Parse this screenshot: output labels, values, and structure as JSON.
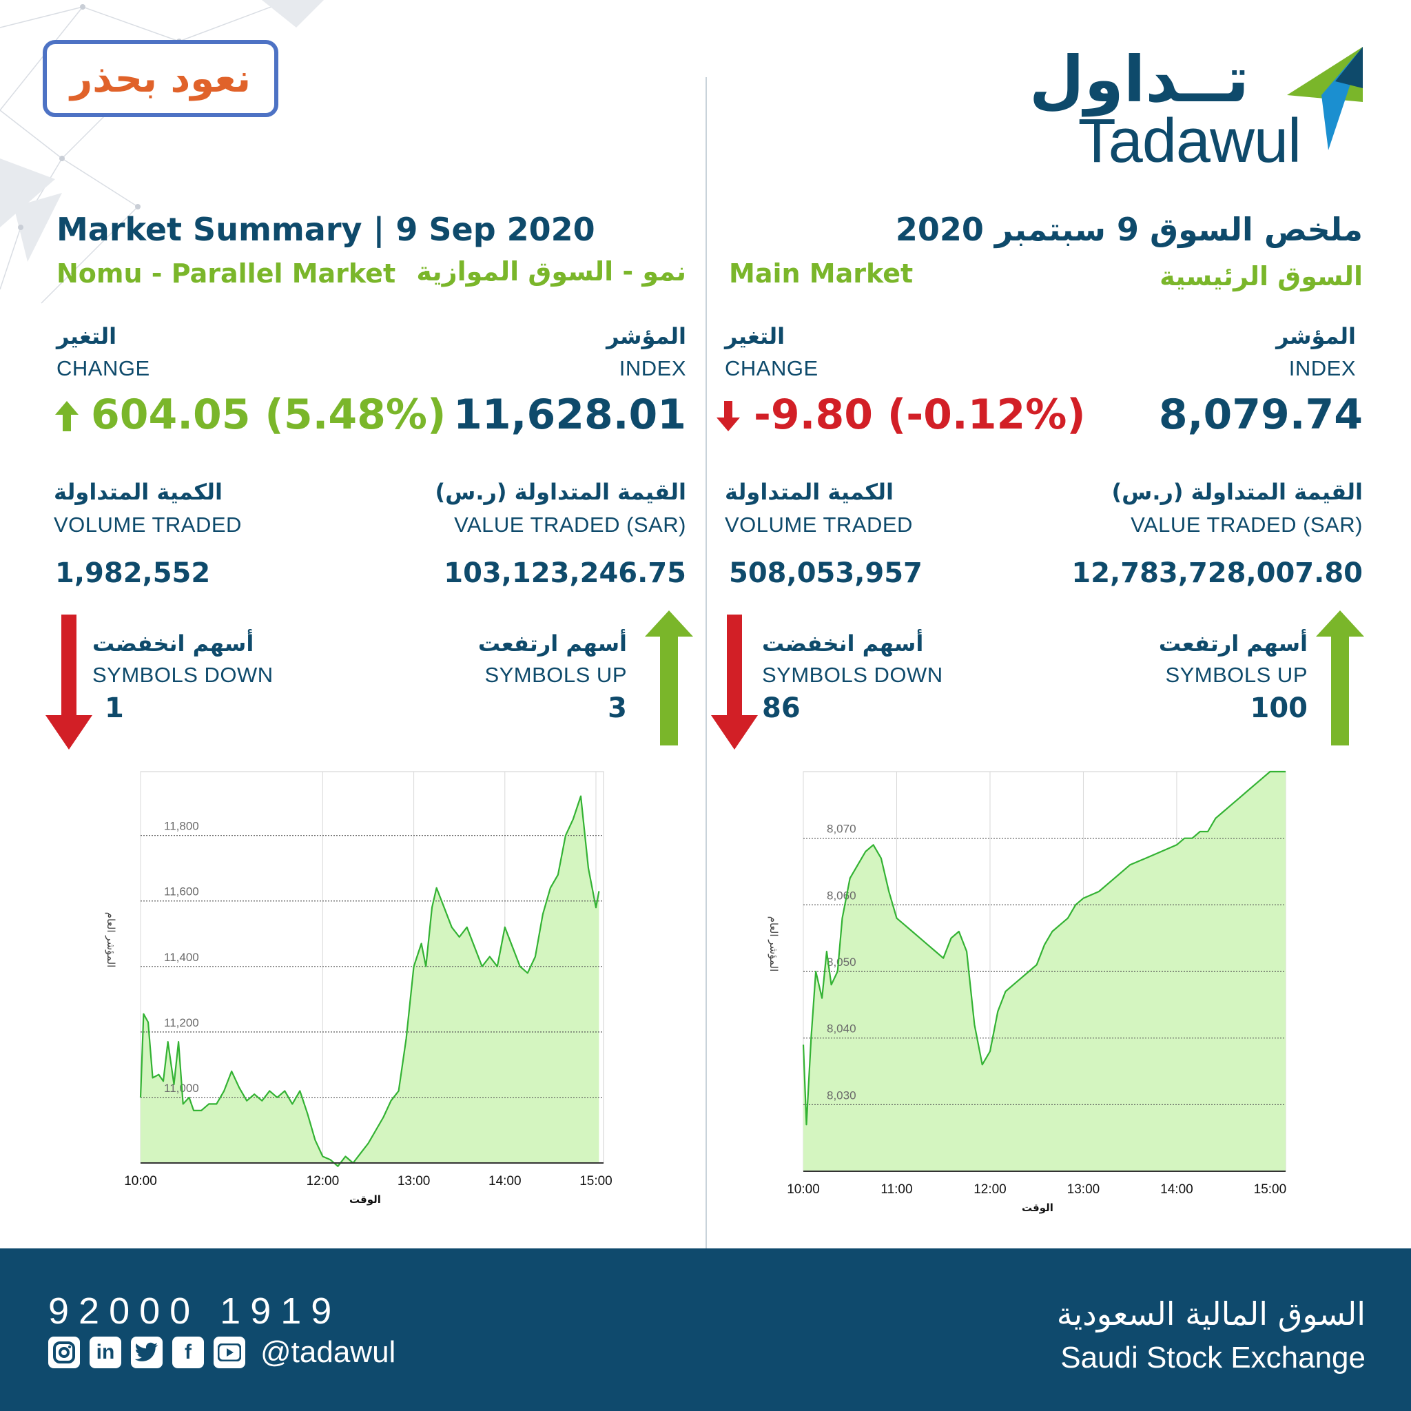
{
  "badge": {
    "text": "نعود بحذر"
  },
  "logo": {
    "arabic": "تــداول",
    "english": "Tadawul"
  },
  "left": {
    "title": "Market Summary | 9 Sep 2020",
    "market_en": "Nomu - Parallel Market",
    "market_ar": "نمو - السوق الموازية",
    "change": {
      "label_ar": "التغير",
      "label_en": "CHANGE",
      "value": "604.05 (5.48%)",
      "direction": "up"
    },
    "index": {
      "label_ar": "المؤشر",
      "label_en": "INDEX",
      "value": "11,628.01"
    },
    "volume": {
      "label_ar": "الكمية المتداولة",
      "label_en": "VOLUME TRADED",
      "value": "1,982,552"
    },
    "value_traded": {
      "label_ar": "القيمة المتداولة (ر.س)",
      "label_en": "VALUE TRADED (SAR)",
      "value": "103,123,246.75"
    },
    "symbols_down": {
      "label_ar": "أسهم انخفضت",
      "label_en": "SYMBOLS DOWN",
      "value": "1"
    },
    "symbols_up": {
      "label_ar": "أسهم ارتفعت",
      "label_en": "SYMBOLS UP",
      "value": "3"
    }
  },
  "right": {
    "title": "ملخص السوق  9 سبتمبر 2020",
    "market_en": "Main Market",
    "market_ar": "السوق الرئيسية",
    "change": {
      "label_ar": "التغير",
      "label_en": "CHANGE",
      "value": "-9.80 (-0.12%)",
      "direction": "down"
    },
    "index": {
      "label_ar": "المؤشر",
      "label_en": "INDEX",
      "value": "8,079.74"
    },
    "volume": {
      "label_ar": "الكمية المتداولة",
      "label_en": "VOLUME TRADED",
      "value": "508,053,957"
    },
    "value_traded": {
      "label_ar": "القيمة المتداولة (ر.س)",
      "label_en": "VALUE TRADED (SAR)",
      "value": "12,783,728,007.80"
    },
    "symbols_down": {
      "label_ar": "أسهم انخفضت",
      "label_en": "SYMBOLS DOWN",
      "value": "86"
    },
    "symbols_up": {
      "label_ar": "أسهم ارتفعت",
      "label_en": "SYMBOLS UP",
      "value": "100"
    }
  },
  "colors": {
    "navy": "#0e4a6b",
    "green": "#7ab62a",
    "red": "#d21f26",
    "chart_line": "#33b233",
    "chart_fill": "#d4f5c0"
  },
  "chart_data": [
    {
      "type": "area",
      "xlabel": "الوقت",
      "ylabel": "المؤشر العام",
      "x_ticks": [
        "10:00",
        "12:00",
        "13:00",
        "14:00",
        "15:00"
      ],
      "y_ticks": [
        "11,000",
        "11,200",
        "11,400",
        "11,600",
        "11,800"
      ],
      "ylim": [
        10800,
        11995
      ],
      "grid": true,
      "x": [
        "10:00",
        "10:02",
        "10:05",
        "10:08",
        "10:12",
        "10:15",
        "10:18",
        "10:22",
        "10:25",
        "10:28",
        "10:32",
        "10:35",
        "10:40",
        "10:45",
        "10:50",
        "10:55",
        "11:00",
        "11:05",
        "11:10",
        "11:15",
        "11:20",
        "11:25",
        "11:30",
        "11:35",
        "11:40",
        "11:45",
        "11:50",
        "11:55",
        "12:00",
        "12:05",
        "12:10",
        "12:15",
        "12:20",
        "12:25",
        "12:30",
        "12:35",
        "12:40",
        "12:45",
        "12:50",
        "12:55",
        "13:00",
        "13:05",
        "13:08",
        "13:12",
        "13:15",
        "13:20",
        "13:25",
        "13:30",
        "13:35",
        "13:40",
        "13:45",
        "13:50",
        "13:55",
        "14:00",
        "14:05",
        "14:10",
        "14:15",
        "14:20",
        "14:25",
        "14:30",
        "14:35",
        "14:40",
        "14:45",
        "14:50",
        "14:55",
        "15:00",
        "15:02"
      ],
      "values": [
        11000,
        11255,
        11230,
        11060,
        11070,
        11050,
        11170,
        11040,
        11170,
        10980,
        11000,
        10960,
        10960,
        10980,
        10980,
        11020,
        11080,
        11030,
        10990,
        11010,
        10990,
        11020,
        11000,
        11020,
        10980,
        11020,
        10950,
        10870,
        10820,
        10810,
        10790,
        10820,
        10800,
        10830,
        10860,
        10900,
        10940,
        10990,
        11020,
        11180,
        11400,
        11470,
        11400,
        11580,
        11640,
        11580,
        11520,
        11490,
        11520,
        11460,
        11400,
        11430,
        11400,
        11520,
        11460,
        11400,
        11380,
        11430,
        11560,
        11640,
        11680,
        11800,
        11850,
        11920,
        11700,
        11580,
        11630
      ]
    },
    {
      "type": "area",
      "xlabel": "الوقت",
      "ylabel": "المؤشر العام",
      "x_ticks": [
        "10:00",
        "11:00",
        "12:00",
        "13:00",
        "14:00",
        "15:00"
      ],
      "y_ticks": [
        "8,030",
        "8,040",
        "8,050",
        "8,060",
        "8,070"
      ],
      "ylim": [
        8020,
        8080
      ],
      "grid": true,
      "x": [
        "10:00",
        "10:02",
        "10:05",
        "10:08",
        "10:12",
        "10:15",
        "10:18",
        "10:22",
        "10:25",
        "10:30",
        "10:35",
        "10:40",
        "10:45",
        "10:50",
        "10:55",
        "11:00",
        "11:05",
        "11:10",
        "11:15",
        "11:20",
        "11:25",
        "11:30",
        "11:35",
        "11:40",
        "11:45",
        "11:50",
        "11:55",
        "12:00",
        "12:05",
        "12:10",
        "12:15",
        "12:20",
        "12:25",
        "12:30",
        "12:35",
        "12:40",
        "12:45",
        "12:50",
        "12:55",
        "13:00",
        "13:10",
        "13:20",
        "13:30",
        "13:40",
        "13:50",
        "14:00",
        "14:05",
        "14:10",
        "14:15",
        "14:20",
        "14:25",
        "14:30",
        "14:35",
        "14:40",
        "14:45",
        "14:50",
        "14:55",
        "15:00",
        "15:05",
        "15:10"
      ],
      "values": [
        8039,
        8027,
        8040,
        8050,
        8046,
        8053,
        8048,
        8050,
        8058,
        8064,
        8066,
        8068,
        8069,
        8067,
        8062,
        8058,
        8057,
        8056,
        8055,
        8054,
        8053,
        8052,
        8055,
        8056,
        8053,
        8042,
        8036,
        8038,
        8044,
        8047,
        8048,
        8049,
        8050,
        8051,
        8054,
        8056,
        8057,
        8058,
        8060,
        8061,
        8062,
        8064,
        8066,
        8067,
        8068,
        8069,
        8070,
        8070,
        8071,
        8071,
        8073,
        8074,
        8075,
        8076,
        8077,
        8078,
        8079,
        8080,
        8080,
        8080
      ]
    }
  ],
  "footer": {
    "phone": "92000 1919",
    "handle": "@tadawul",
    "social": [
      "instagram-icon",
      "linkedin-icon",
      "twitter-icon",
      "facebook-icon",
      "youtube-icon"
    ],
    "exchange_ar": "السوق المالية السعودية",
    "exchange_en": "Saudi Stock Exchange"
  }
}
